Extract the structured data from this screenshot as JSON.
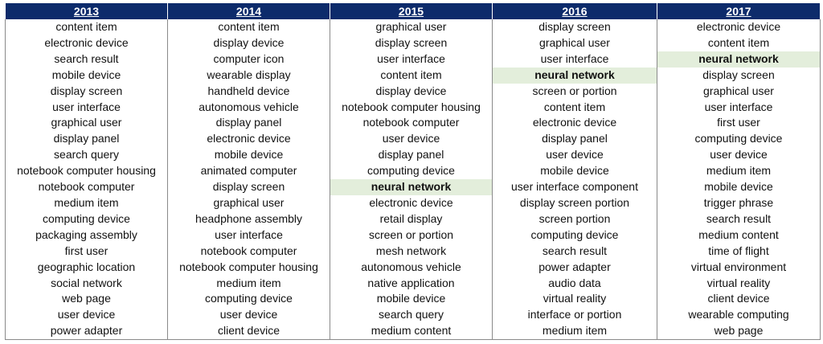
{
  "highlight_term": "neural network",
  "colors": {
    "header_bg": "#0d2b6b",
    "header_text": "#ffffff",
    "highlight_bg": "#e3eedb"
  },
  "table": {
    "headers": [
      "2013",
      "2014",
      "2015",
      "2016",
      "2017"
    ],
    "rows": [
      [
        "content item",
        "content item",
        "graphical user",
        "display screen",
        "electronic device"
      ],
      [
        "electronic device",
        "display device",
        "display screen",
        "graphical user",
        "content item"
      ],
      [
        "search result",
        "computer icon",
        "user interface",
        "user interface",
        "neural network"
      ],
      [
        "mobile device",
        "wearable display",
        "content item",
        "neural network",
        "display screen"
      ],
      [
        "display screen",
        "handheld device",
        "display device",
        "screen or portion",
        "graphical user"
      ],
      [
        "user interface",
        "autonomous vehicle",
        "notebook computer housing",
        "content item",
        "user interface"
      ],
      [
        "graphical user",
        "display panel",
        "notebook computer",
        "electronic device",
        "first user"
      ],
      [
        "display panel",
        "electronic device",
        "user device",
        "display panel",
        "computing device"
      ],
      [
        "search query",
        "mobile device",
        "display panel",
        "user device",
        "user device"
      ],
      [
        "notebook computer housing",
        "animated computer",
        "computing device",
        "mobile device",
        "medium item"
      ],
      [
        "notebook computer",
        "display screen",
        "neural network",
        "user interface component",
        "mobile device"
      ],
      [
        "medium item",
        "graphical user",
        "electronic device",
        "display screen portion",
        "trigger phrase"
      ],
      [
        "computing device",
        "headphone assembly",
        "retail display",
        "screen portion",
        "search result"
      ],
      [
        "packaging assembly",
        "user interface",
        "screen or portion",
        "computing device",
        "medium content"
      ],
      [
        "first user",
        "notebook computer",
        "mesh network",
        "search result",
        "time of flight"
      ],
      [
        "geographic location",
        "notebook computer housing",
        "autonomous vehicle",
        "power adapter",
        "virtual environment"
      ],
      [
        "social network",
        "medium item",
        "native application",
        "audio data",
        "virtual reality"
      ],
      [
        "web page",
        "computing device",
        "mobile device",
        "virtual reality",
        "client device"
      ],
      [
        "user device",
        "user device",
        "search query",
        "interface or portion",
        "wearable computing"
      ],
      [
        "power adapter",
        "client device",
        "medium content",
        "medium item",
        "web page"
      ]
    ]
  }
}
